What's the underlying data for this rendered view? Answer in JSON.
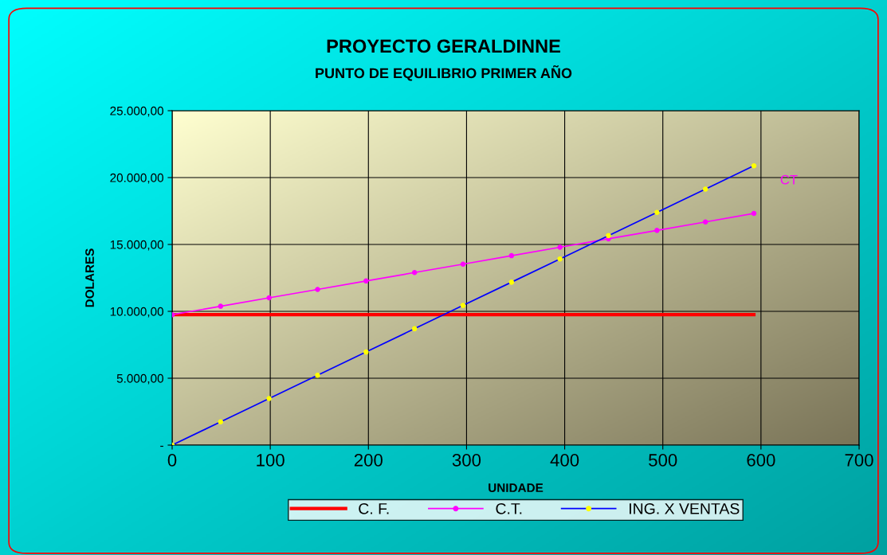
{
  "chart_data": {
    "type": "line",
    "title": "PROYECTO GERALDINNE",
    "subtitle": "PUNTO DE EQUILIBRIO PRIMER AÑO",
    "xlabel": "UNIDADE",
    "ylabel": "DOLARES",
    "x": [
      0,
      49.4,
      98.8,
      148.2,
      197.6,
      247,
      296.4,
      345.8,
      395.2,
      444.6,
      494,
      543.4,
      592.8
    ],
    "series": [
      {
        "name": "C. F.",
        "color": "#ff0000",
        "marker": "none",
        "x": [
          0,
          592.8
        ],
        "values": [
          9750,
          9750
        ]
      },
      {
        "name": "C.T.",
        "color": "#ff00ff",
        "marker": "circle",
        "values": [
          9750,
          10380,
          11010,
          11640,
          12270,
          12900,
          13530,
          14160,
          14790,
          15420,
          16050,
          16680,
          17320
        ]
      },
      {
        "name": "ING. X VENTAS",
        "color": "#0000ff",
        "marker": "circle",
        "colors": [
          "#ffff00",
          "#ffff00",
          "#ffff00",
          "#ffff00",
          "#ffff00",
          "#ffff00",
          "#ffff00",
          "#ffff00",
          "#ffff00",
          "#ffff00",
          "#ffff00",
          "#ffff00",
          "#ffff00"
        ],
        "values": [
          0,
          1740,
          3480,
          5220,
          6960,
          8700,
          10440,
          12180,
          13920,
          15660,
          17400,
          19140,
          20880
        ]
      }
    ],
    "annotations": [
      "CT"
    ],
    "xlim": [
      0,
      700
    ],
    "xticks": [
      0,
      100,
      200,
      300,
      400,
      500,
      600,
      700
    ],
    "ylim": [
      0,
      25000
    ],
    "yticks": [
      {
        "value": 0,
        "label": "-"
      },
      {
        "value": 5000,
        "label": "5.000,00"
      },
      {
        "value": 10000,
        "label": "10.000,00"
      },
      {
        "value": 15000,
        "label": "15.000,00"
      },
      {
        "value": 20000,
        "label": "20.000,00"
      },
      {
        "value": 25000,
        "label": "25.000,00"
      }
    ],
    "grid": true,
    "legend": "bottom",
    "line_style": "solid"
  }
}
